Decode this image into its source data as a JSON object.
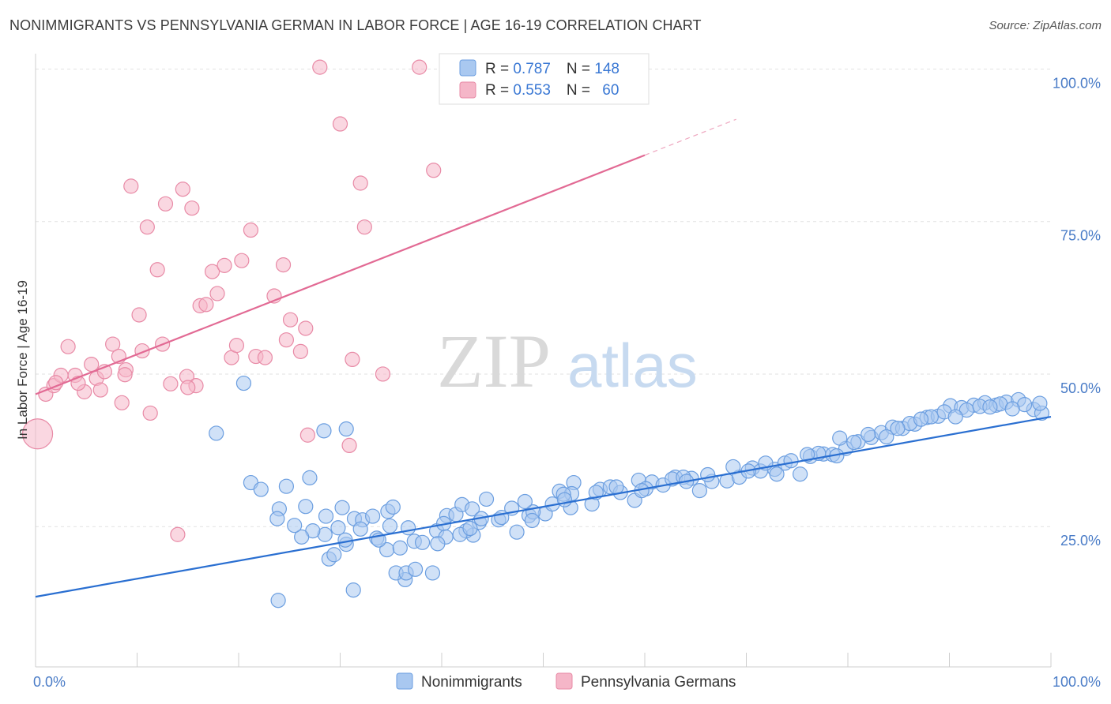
{
  "title": "NONIMMIGRANTS VS PENNSYLVANIA GERMAN IN LABOR FORCE | AGE 16-19 CORRELATION CHART",
  "source": "Source: ZipAtlas.com",
  "watermark": {
    "zip": "ZIP",
    "atlas": "atlas"
  },
  "colors": {
    "blue_fill": "#a9c8f0",
    "blue_stroke": "#6b9ee0",
    "blue_line": "#2a6fd1",
    "pink_fill": "#f5b6c8",
    "pink_stroke": "#e88aa6",
    "pink_line": "#e26a94",
    "tick_label": "#4a7cc7",
    "grid": "#e2e2e2"
  },
  "stats_legend": {
    "rows": [
      {
        "r_label": "R = ",
        "r_value": "0.787",
        "n_label": "N = ",
        "n_value": "148",
        "series": "blue"
      },
      {
        "r_label": "R = ",
        "r_value": "0.553",
        "n_label": "N = ",
        "n_value": "60",
        "series": "pink"
      }
    ]
  },
  "bottom_legend": [
    "Nonimmigrants",
    "Pennsylvania Germans"
  ],
  "chart_data": {
    "type": "scatter",
    "ylabel": "In Labor Force | Age 16-19",
    "x_tick_labels": [
      "0.0%",
      "100.0%"
    ],
    "y_tick_labels": [
      "100.0%",
      "75.0%",
      "50.0%",
      "25.0%"
    ],
    "y_ticks": [
      100,
      75,
      50,
      25
    ],
    "xlim": [
      0,
      100
    ],
    "ylim": [
      2,
      102
    ],
    "grid": true,
    "series": [
      {
        "name": "Nonimmigrants",
        "color": "blue",
        "trend": {
          "x": [
            0,
            100
          ],
          "y": [
            13.5,
            43
          ]
        },
        "points": [
          [
            23.9,
            12.9
          ],
          [
            31.3,
            14.6
          ],
          [
            36.4,
            16.3
          ],
          [
            39.1,
            17.4
          ],
          [
            33.6,
            23.1
          ],
          [
            34.6,
            21.2
          ],
          [
            35.5,
            17.4
          ],
          [
            28.9,
            19.7
          ],
          [
            26.6,
            28.3
          ],
          [
            30.2,
            28.1
          ],
          [
            28.5,
            23.7
          ],
          [
            24.7,
            31.6
          ],
          [
            21.2,
            32.2
          ],
          [
            28.6,
            26.7
          ],
          [
            29.4,
            20.4
          ],
          [
            34.7,
            27.5
          ],
          [
            36.5,
            17.4
          ],
          [
            37.4,
            18.0
          ],
          [
            27.0,
            33.0
          ],
          [
            30.6,
            22.1
          ],
          [
            31.4,
            26.3
          ],
          [
            32.2,
            26.1
          ],
          [
            33.8,
            22.8
          ],
          [
            35.2,
            28.2
          ],
          [
            37.3,
            22.6
          ],
          [
            39.5,
            24.3
          ],
          [
            43.1,
            23.6
          ],
          [
            36.7,
            24.8
          ],
          [
            42.4,
            24.3
          ],
          [
            40.5,
            26.8
          ],
          [
            41.4,
            27.0
          ],
          [
            42.0,
            28.6
          ],
          [
            43.0,
            27.9
          ],
          [
            44.4,
            29.5
          ],
          [
            45.6,
            26.1
          ],
          [
            47.4,
            24.1
          ],
          [
            48.6,
            26.8
          ],
          [
            50.2,
            27.1
          ],
          [
            51.6,
            30.8
          ],
          [
            52.7,
            28.1
          ],
          [
            53.0,
            32.2
          ],
          [
            54.8,
            28.7
          ],
          [
            55.6,
            31.1
          ],
          [
            56.6,
            31.5
          ],
          [
            57.6,
            30.6
          ],
          [
            59.0,
            29.3
          ],
          [
            60.7,
            32.3
          ],
          [
            61.8,
            31.8
          ],
          [
            63.0,
            33.1
          ],
          [
            64.6,
            32.9
          ],
          [
            65.4,
            30.9
          ],
          [
            66.6,
            32.4
          ],
          [
            68.1,
            32.5
          ],
          [
            69.3,
            33.1
          ],
          [
            70.6,
            34.6
          ],
          [
            71.4,
            34.1
          ],
          [
            72.8,
            34.4
          ],
          [
            73.8,
            35.4
          ],
          [
            75.3,
            33.6
          ],
          [
            76.3,
            36.5
          ],
          [
            77.6,
            36.9
          ],
          [
            78.5,
            36.8
          ],
          [
            79.8,
            37.8
          ],
          [
            81.0,
            38.9
          ],
          [
            82.3,
            39.6
          ],
          [
            83.3,
            40.4
          ],
          [
            84.4,
            41.3
          ],
          [
            85.4,
            41.1
          ],
          [
            86.6,
            41.8
          ],
          [
            87.8,
            42.9
          ],
          [
            88.9,
            43.1
          ],
          [
            90.1,
            44.8
          ],
          [
            91.2,
            44.5
          ],
          [
            92.4,
            44.9
          ],
          [
            93.5,
            45.3
          ],
          [
            94.6,
            44.9
          ],
          [
            95.6,
            45.4
          ],
          [
            96.8,
            45.8
          ],
          [
            98.3,
            44.2
          ],
          [
            99.1,
            43.6
          ],
          [
            20.5,
            48.5
          ],
          [
            17.8,
            40.3
          ],
          [
            28.4,
            40.7
          ],
          [
            30.6,
            41.0
          ],
          [
            24.0,
            27.9
          ],
          [
            34.9,
            25.1
          ],
          [
            41.8,
            23.7
          ],
          [
            46.9,
            28.0
          ],
          [
            49.0,
            27.4
          ],
          [
            52.8,
            30.4
          ],
          [
            57.2,
            31.5
          ],
          [
            59.4,
            32.6
          ],
          [
            62.7,
            32.8
          ],
          [
            66.2,
            33.5
          ],
          [
            68.7,
            34.8
          ],
          [
            71.9,
            35.4
          ],
          [
            74.4,
            35.8
          ],
          [
            77.1,
            37.0
          ],
          [
            79.2,
            39.5
          ],
          [
            80.6,
            38.8
          ],
          [
            82.0,
            40.1
          ],
          [
            83.8,
            39.7
          ],
          [
            86.1,
            41.9
          ],
          [
            88.2,
            43.0
          ],
          [
            89.5,
            43.8
          ],
          [
            91.7,
            44.1
          ],
          [
            93.0,
            44.7
          ],
          [
            95.0,
            45.1
          ],
          [
            97.4,
            45.0
          ],
          [
            98.9,
            45.2
          ],
          [
            63.8,
            33.1
          ],
          [
            60.1,
            31.2
          ],
          [
            55.2,
            30.6
          ],
          [
            52.0,
            30.3
          ],
          [
            50.9,
            28.7
          ],
          [
            48.2,
            29.1
          ],
          [
            45.9,
            26.5
          ],
          [
            43.7,
            25.7
          ],
          [
            40.2,
            25.5
          ],
          [
            38.1,
            22.4
          ],
          [
            33.2,
            26.7
          ],
          [
            32.0,
            24.6
          ],
          [
            29.8,
            24.8
          ],
          [
            27.3,
            24.3
          ],
          [
            26.2,
            23.3
          ],
          [
            25.5,
            25.2
          ],
          [
            23.8,
            26.3
          ],
          [
            22.2,
            31.1
          ],
          [
            73.0,
            33.6
          ],
          [
            76.0,
            36.8
          ],
          [
            78.9,
            36.6
          ],
          [
            84.9,
            41.1
          ],
          [
            87.2,
            42.6
          ],
          [
            90.6,
            43.0
          ],
          [
            94.0,
            44.6
          ],
          [
            96.2,
            44.3
          ],
          [
            43.9,
            26.3
          ],
          [
            48.9,
            26.0
          ],
          [
            52.1,
            29.4
          ],
          [
            59.7,
            30.9
          ],
          [
            64.1,
            32.4
          ],
          [
            70.2,
            34.1
          ],
          [
            42.8,
            24.7
          ],
          [
            35.9,
            21.5
          ],
          [
            40.4,
            23.3
          ],
          [
            39.6,
            22.2
          ],
          [
            30.5,
            22.8
          ]
        ]
      },
      {
        "name": "Pennsylvania Germans",
        "color": "pink",
        "trend": {
          "x": [
            0,
            100
          ],
          "y": [
            46.7,
            112
          ],
          "solid_until_x": 60
        },
        "points": [
          [
            0.2,
            40.2
          ],
          [
            1.0,
            46.7
          ],
          [
            1.8,
            48.1
          ],
          [
            2.5,
            49.8
          ],
          [
            3.2,
            54.5
          ],
          [
            3.9,
            49.8
          ],
          [
            4.8,
            47.1
          ],
          [
            5.5,
            51.6
          ],
          [
            6.0,
            49.3
          ],
          [
            6.8,
            50.4
          ],
          [
            7.6,
            54.9
          ],
          [
            8.2,
            52.9
          ],
          [
            8.5,
            45.3
          ],
          [
            8.9,
            50.7
          ],
          [
            9.4,
            80.8
          ],
          [
            10.2,
            59.7
          ],
          [
            10.5,
            53.8
          ],
          [
            11.0,
            74.1
          ],
          [
            11.3,
            43.6
          ],
          [
            12.0,
            67.1
          ],
          [
            12.5,
            54.9
          ],
          [
            12.8,
            77.9
          ],
          [
            13.3,
            48.4
          ],
          [
            14.0,
            23.7
          ],
          [
            14.5,
            80.3
          ],
          [
            14.9,
            49.6
          ],
          [
            15.4,
            77.2
          ],
          [
            15.8,
            48.1
          ],
          [
            16.2,
            61.2
          ],
          [
            16.8,
            61.4
          ],
          [
            17.4,
            66.8
          ],
          [
            17.9,
            63.2
          ],
          [
            18.6,
            67.8
          ],
          [
            19.3,
            52.7
          ],
          [
            19.8,
            54.7
          ],
          [
            20.3,
            68.6
          ],
          [
            21.2,
            73.6
          ],
          [
            21.7,
            52.9
          ],
          [
            22.6,
            52.7
          ],
          [
            23.5,
            62.8
          ],
          [
            24.4,
            67.9
          ],
          [
            24.7,
            55.6
          ],
          [
            25.1,
            58.9
          ],
          [
            26.1,
            53.7
          ],
          [
            26.6,
            57.5
          ],
          [
            26.8,
            40.0
          ],
          [
            28.0,
            100.3
          ],
          [
            30.0,
            91.0
          ],
          [
            30.9,
            38.3
          ],
          [
            31.2,
            52.4
          ],
          [
            32.0,
            81.3
          ],
          [
            32.4,
            74.1
          ],
          [
            34.2,
            50.0
          ],
          [
            37.8,
            100.3
          ],
          [
            39.2,
            83.4
          ],
          [
            2.0,
            48.6
          ],
          [
            4.2,
            48.5
          ],
          [
            6.4,
            47.4
          ],
          [
            8.8,
            49.9
          ],
          [
            15.0,
            47.8
          ]
        ]
      }
    ]
  }
}
